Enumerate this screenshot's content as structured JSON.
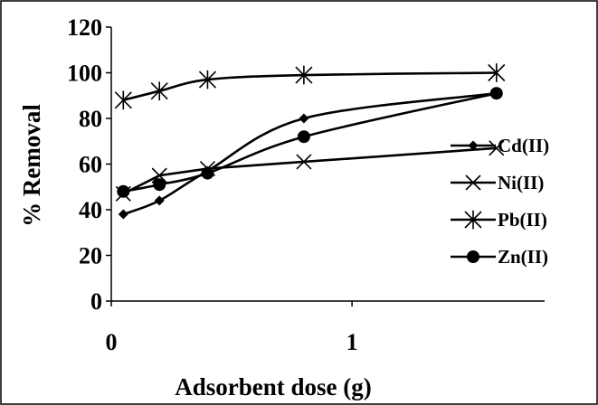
{
  "chart_data": {
    "type": "line",
    "title": "",
    "xlabel": "Adsorbent dose (g)",
    "ylabel": "% Removal",
    "xlim": [
      0,
      1.8
    ],
    "ylim": [
      0,
      120
    ],
    "x_ticks": [
      "0",
      "1"
    ],
    "y_ticks": [
      "0",
      "20",
      "40",
      "60",
      "80",
      "100",
      "120"
    ],
    "x": [
      0.05,
      0.2,
      0.4,
      0.8,
      1.6
    ],
    "grid": false,
    "legend_position": "right",
    "series": [
      {
        "name": "Cd(II)",
        "marker": "diamond",
        "smooth": true,
        "values": [
          38,
          44,
          57,
          80,
          91
        ]
      },
      {
        "name": "Ni(II)",
        "marker": "x",
        "smooth": false,
        "values": [
          47,
          55,
          58,
          61,
          67
        ]
      },
      {
        "name": "Pb(II)",
        "marker": "asterisk",
        "smooth": true,
        "values": [
          88,
          92,
          97,
          99,
          100
        ]
      },
      {
        "name": "Zn(II)",
        "marker": "circle",
        "smooth": true,
        "values": [
          48,
          51,
          56,
          72,
          91
        ]
      }
    ]
  }
}
